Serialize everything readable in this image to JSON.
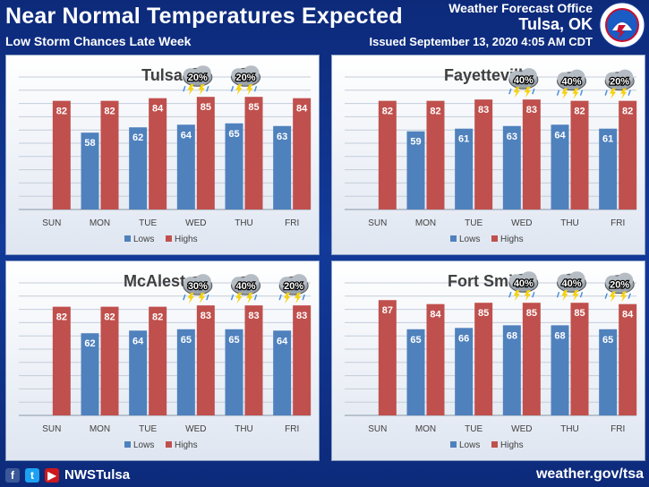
{
  "header": {
    "title": "Near Normal Temperatures Expected",
    "subtitle": "Low Storm Chances Late Week",
    "office": "Weather Forecast Office",
    "city": "Tulsa, OK",
    "issued": "Issued September 13, 2020 4:05 AM CDT",
    "seal_text": "NATIONAL WEATHER SERVICE"
  },
  "footer": {
    "handle": "NWSTulsa",
    "website": "weather.gov/tsa",
    "icons": [
      "facebook-icon",
      "twitter-icon",
      "youtube-icon"
    ]
  },
  "colors": {
    "lows": "#4f81bd",
    "highs": "#c0504d"
  },
  "chart_data": [
    {
      "type": "bar",
      "title": "Tulsa",
      "categories": [
        "SUN",
        "MON",
        "TUE",
        "WED",
        "THU",
        "FRI"
      ],
      "series": [
        {
          "name": "Lows",
          "values": [
            null,
            58,
            62,
            64,
            65,
            63
          ]
        },
        {
          "name": "Highs",
          "values": [
            82,
            82,
            84,
            85,
            85,
            84
          ]
        }
      ],
      "storm_chances": [
        null,
        null,
        null,
        "20%",
        "20%",
        null
      ],
      "ylim": [
        0,
        100
      ],
      "legend": "bottom",
      "grid": true
    },
    {
      "type": "bar",
      "title": "Fayetteville",
      "categories": [
        "SUN",
        "MON",
        "TUE",
        "WED",
        "THU",
        "FRI"
      ],
      "series": [
        {
          "name": "Lows",
          "values": [
            null,
            59,
            61,
            63,
            64,
            61
          ]
        },
        {
          "name": "Highs",
          "values": [
            82,
            82,
            83,
            83,
            82,
            82
          ]
        }
      ],
      "storm_chances": [
        null,
        null,
        null,
        "40%",
        "40%",
        "20%"
      ],
      "ylim": [
        0,
        100
      ],
      "legend": "bottom",
      "grid": true
    },
    {
      "type": "bar",
      "title": "McAlester",
      "categories": [
        "SUN",
        "MON",
        "TUE",
        "WED",
        "THU",
        "FRI"
      ],
      "series": [
        {
          "name": "Lows",
          "values": [
            null,
            62,
            64,
            65,
            65,
            64
          ]
        },
        {
          "name": "Highs",
          "values": [
            82,
            82,
            82,
            83,
            83,
            83
          ]
        }
      ],
      "storm_chances": [
        null,
        null,
        null,
        "30%",
        "40%",
        "20%"
      ],
      "ylim": [
        0,
        100
      ],
      "legend": "bottom",
      "grid": true
    },
    {
      "type": "bar",
      "title": "Fort Smith",
      "categories": [
        "SUN",
        "MON",
        "TUE",
        "WED",
        "THU",
        "FRI"
      ],
      "series": [
        {
          "name": "Lows",
          "values": [
            null,
            65,
            66,
            68,
            68,
            65
          ]
        },
        {
          "name": "Highs",
          "values": [
            87,
            84,
            85,
            85,
            85,
            84
          ]
        }
      ],
      "storm_chances": [
        null,
        null,
        null,
        "40%",
        "40%",
        "20%"
      ],
      "ylim": [
        0,
        100
      ],
      "legend": "bottom",
      "grid": true
    }
  ]
}
